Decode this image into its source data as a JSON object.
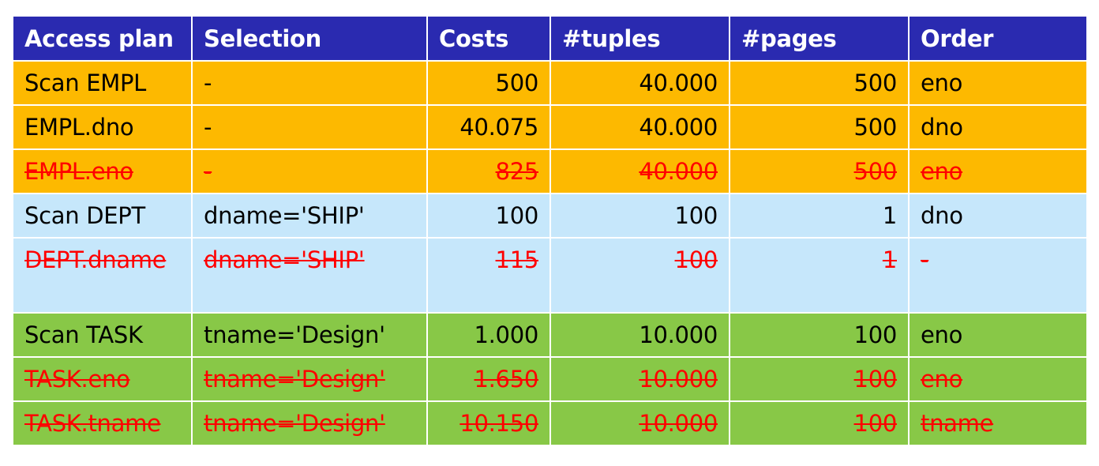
{
  "colors": {
    "header_bg": "#2a2ab0",
    "empl_rows": "#fdb900",
    "dept_rows": "#c6e7fb",
    "task_rows": "#88c847",
    "struck_text": "#ff0000"
  },
  "table": {
    "headers": [
      "Access plan",
      "Selection",
      "Costs",
      "#tuples",
      "#pages",
      "Order"
    ],
    "rows": [
      {
        "plan": "Scan EMPL",
        "selection": "-",
        "costs": "500",
        "tuples": "40.000",
        "pages": "500",
        "order": "eno",
        "struck": false
      },
      {
        "plan": "EMPL.dno",
        "selection": "-",
        "costs": "40.075",
        "tuples": "40.000",
        "pages": "500",
        "order": "dno",
        "struck": false
      },
      {
        "plan": "EMPL.eno",
        "selection": "-",
        "costs": "825",
        "tuples": "40.000",
        "pages": "500",
        "order": "eno",
        "struck": true
      },
      {
        "plan": "Scan DEPT",
        "selection": "dname='SHIP'",
        "costs": "100",
        "tuples": "100",
        "pages": "1",
        "order": "dno",
        "struck": false
      },
      {
        "plan": "DEPT.dname",
        "selection": "dname='SHIP'",
        "costs": "115",
        "tuples": "100",
        "pages": "1",
        "order": "-",
        "struck": true
      },
      {
        "plan": "Scan TASK",
        "selection": "tname='Design'",
        "costs": "1.000",
        "tuples": "10.000",
        "pages": "100",
        "order": "eno",
        "struck": false
      },
      {
        "plan": "TASK.eno",
        "selection": "tname='Design'",
        "costs": "1.650",
        "tuples": "10.000",
        "pages": "100",
        "order": "eno",
        "struck": true
      },
      {
        "plan": "TASK.tname",
        "selection": "tname='Design'",
        "costs": "10.150",
        "tuples": "10.000",
        "pages": "100",
        "order": "tname",
        "struck": true
      }
    ]
  }
}
